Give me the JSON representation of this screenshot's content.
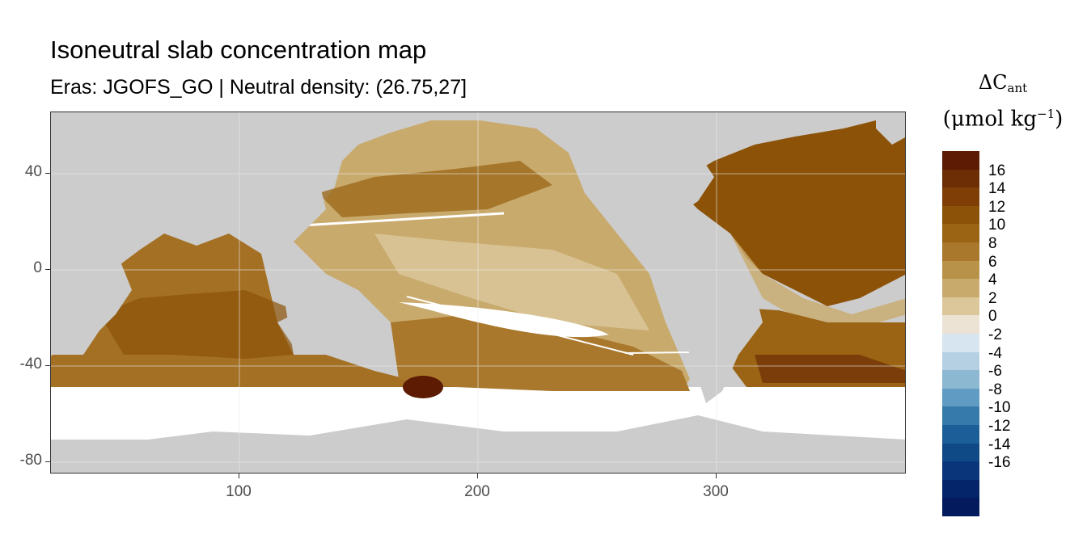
{
  "map": {
    "title": "Isoneutral slab concentration map",
    "subtitle": "Eras: JGOFS_GO | Neutral density: (26.75,27]",
    "y_ticks": [
      "40",
      "0",
      "-40",
      "-80"
    ],
    "x_ticks": [
      "100",
      "200",
      "300"
    ],
    "colors": {
      "land": "#cccccc",
      "no_data": "#ffffff",
      "grid": "#ebebeb"
    }
  },
  "legend": {
    "symbol": "ΔC",
    "subscript": "ant",
    "unit_open": "(μmol kg",
    "unit_exp": "−1",
    "unit_close": ")",
    "labels": [
      "16",
      "14",
      "12",
      "10",
      "8",
      "6",
      "4",
      "2",
      "0",
      "-2",
      "-4",
      "-6",
      "-8",
      "-10",
      "-12",
      "-14",
      "-16"
    ],
    "colors": [
      "#5c1b02",
      "#6e2e05",
      "#7f3e06",
      "#8c5208",
      "#9a6414",
      "#a9782c",
      "#b99249",
      "#c9aa6d",
      "#dbc79a",
      "#ece3d4",
      "#d6e5ef",
      "#b5d0e2",
      "#8cb8d2",
      "#5f9bc2",
      "#3679ab",
      "#1c5e97",
      "#0f4a86",
      "#0a357a",
      "#05256b",
      "#031a5d"
    ]
  }
}
